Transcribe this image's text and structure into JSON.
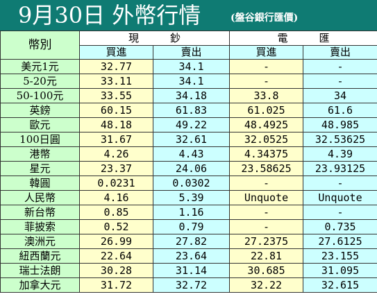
{
  "title": {
    "main": "9月30日 外幣行情",
    "sub": "(盤谷銀行匯價)"
  },
  "table": {
    "corner": "幣別",
    "groups": {
      "cash": "現　　　鈔",
      "wire": "電　　　匯"
    },
    "subheads": [
      "買進",
      "賣出",
      "買進",
      "賣出"
    ],
    "rows": [
      {
        "currency": "美元1元",
        "cash_buy": "32.77",
        "cash_sell": "34.1",
        "wire_buy": "-",
        "wire_sell": "-"
      },
      {
        "currency": "5-20元",
        "cash_buy": "33.11",
        "cash_sell": "34.1",
        "wire_buy": "-",
        "wire_sell": "-"
      },
      {
        "currency": "50-100元",
        "cash_buy": "33.55",
        "cash_sell": "34.18",
        "wire_buy": "33.8",
        "wire_sell": "34"
      },
      {
        "currency": "英鎊",
        "cash_buy": "60.15",
        "cash_sell": "61.83",
        "wire_buy": "61.025",
        "wire_sell": "61.6"
      },
      {
        "currency": "歐元",
        "cash_buy": "48.18",
        "cash_sell": "49.22",
        "wire_buy": "48.4925",
        "wire_sell": "48.985"
      },
      {
        "currency": "100日圓",
        "cash_buy": "31.67",
        "cash_sell": "32.61",
        "wire_buy": "32.0525",
        "wire_sell": "32.53625"
      },
      {
        "currency": "港幣",
        "cash_buy": "4.26",
        "cash_sell": "4.43",
        "wire_buy": "4.34375",
        "wire_sell": "4.39"
      },
      {
        "currency": "星元",
        "cash_buy": "23.37",
        "cash_sell": "24.06",
        "wire_buy": "23.58625",
        "wire_sell": "23.93125"
      },
      {
        "currency": "韓圓",
        "cash_buy": "0.0231",
        "cash_sell": "0.0302",
        "wire_buy": "-",
        "wire_sell": "-"
      },
      {
        "currency": "人民幣",
        "cash_buy": "4.16",
        "cash_sell": "5.39",
        "wire_buy": "Unquote",
        "wire_sell": "Unquote"
      },
      {
        "currency": "新台幣",
        "cash_buy": "0.85",
        "cash_sell": "1.16",
        "wire_buy": "-",
        "wire_sell": "-"
      },
      {
        "currency": "菲披索",
        "cash_buy": "0.52",
        "cash_sell": "0.79",
        "wire_buy": "-",
        "wire_sell": "0.735"
      },
      {
        "currency": "澳洲元",
        "cash_buy": "26.99",
        "cash_sell": "27.82",
        "wire_buy": "27.2375",
        "wire_sell": "27.6125"
      },
      {
        "currency": "紐西蘭元",
        "cash_buy": "22.64",
        "cash_sell": "23.64",
        "wire_buy": "22.81",
        "wire_sell": "23.155"
      },
      {
        "currency": "瑞士法朗",
        "cash_buy": "30.28",
        "cash_sell": "31.14",
        "wire_buy": "30.685",
        "wire_sell": "31.095"
      },
      {
        "currency": "加拿大元",
        "cash_buy": "31.72",
        "cash_sell": "32.72",
        "wire_buy": "32.22",
        "wire_sell": "32.615"
      }
    ]
  },
  "colors": {
    "title_bg": "#0f7b73",
    "label_bg": "#ccffcc",
    "cash_buy_bg": "#ffffcc",
    "cash_sell_bg": "#ccffff",
    "border": "#333333"
  }
}
